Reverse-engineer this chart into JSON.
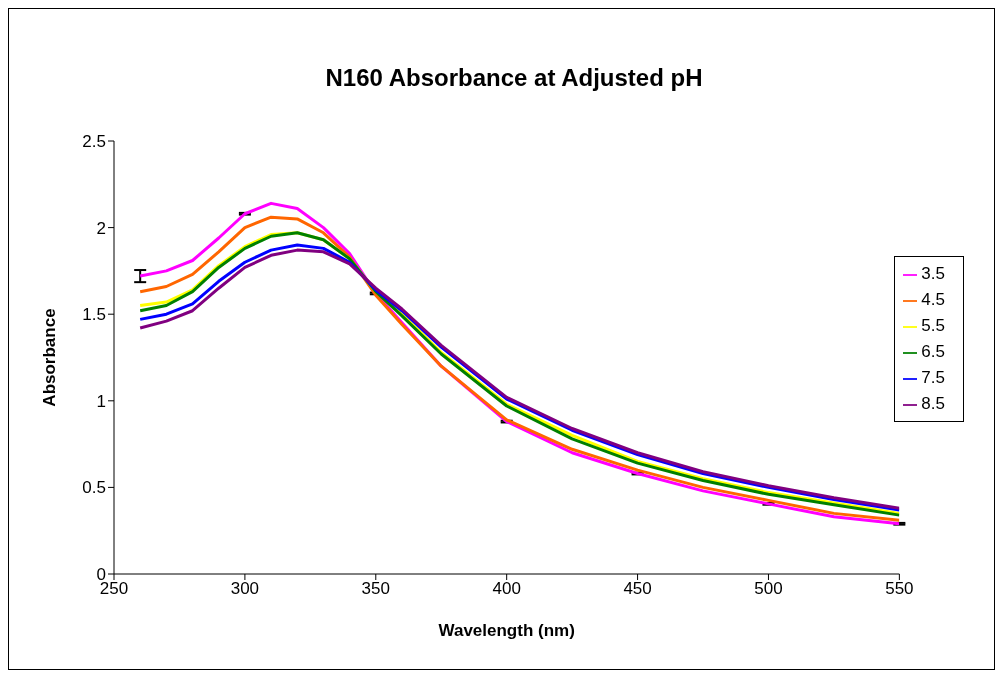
{
  "chart_data": {
    "type": "line",
    "title": "N160 Absorbance at Adjusted pH",
    "xlabel": "Wavelength (nm)",
    "ylabel": "Absorbance",
    "x": [
      260,
      270,
      280,
      290,
      300,
      310,
      320,
      330,
      340,
      350,
      360,
      375,
      400,
      425,
      450,
      475,
      500,
      525,
      550
    ],
    "series": [
      {
        "name": "3.5",
        "color": "#ff00ff",
        "values": [
          1.72,
          1.75,
          1.81,
          1.94,
          2.08,
          2.14,
          2.11,
          2.0,
          1.85,
          1.62,
          1.45,
          1.2,
          0.88,
          0.7,
          0.58,
          0.48,
          0.405,
          0.33,
          0.29
        ],
        "errors": [
          0.035,
          null,
          null,
          null,
          0.005,
          null,
          null,
          null,
          null,
          0.005,
          null,
          null,
          0.005,
          null,
          0.005,
          null,
          0.005,
          null,
          0.005
        ]
      },
      {
        "name": "4.5",
        "color": "#ff6600",
        "values": [
          1.63,
          1.66,
          1.73,
          1.86,
          2.0,
          2.06,
          2.05,
          1.97,
          1.83,
          1.61,
          1.44,
          1.2,
          0.89,
          0.72,
          0.6,
          0.5,
          0.425,
          0.35,
          0.31
        ]
      },
      {
        "name": "5.5",
        "color": "#ffff00",
        "values": [
          1.55,
          1.57,
          1.64,
          1.78,
          1.89,
          1.96,
          1.97,
          1.93,
          1.82,
          1.63,
          1.5,
          1.28,
          0.98,
          0.8,
          0.65,
          0.55,
          0.47,
          0.41,
          0.35
        ]
      },
      {
        "name": "6.5",
        "color": "#008000",
        "values": [
          1.52,
          1.55,
          1.63,
          1.77,
          1.88,
          1.95,
          1.97,
          1.93,
          1.82,
          1.63,
          1.49,
          1.27,
          0.97,
          0.78,
          0.64,
          0.54,
          0.46,
          0.4,
          0.34
        ]
      },
      {
        "name": "7.5",
        "color": "#0000ff",
        "values": [
          1.47,
          1.5,
          1.56,
          1.69,
          1.8,
          1.87,
          1.9,
          1.88,
          1.8,
          1.64,
          1.52,
          1.31,
          1.01,
          0.83,
          0.69,
          0.58,
          0.5,
          0.43,
          0.37
        ]
      },
      {
        "name": "8.5",
        "color": "#800080",
        "values": [
          1.42,
          1.46,
          1.52,
          1.65,
          1.77,
          1.84,
          1.87,
          1.86,
          1.79,
          1.65,
          1.53,
          1.32,
          1.02,
          0.84,
          0.7,
          0.59,
          0.51,
          0.44,
          0.38
        ]
      }
    ],
    "xlim": [
      250,
      550
    ],
    "xticks": [
      250,
      300,
      350,
      400,
      450,
      500,
      550
    ],
    "ylim": [
      0,
      2.5
    ],
    "yticks": [
      0,
      0.5,
      1,
      1.5,
      2,
      2.5
    ],
    "grid": false,
    "legend": "right",
    "marker": "none",
    "line_style": "solid"
  }
}
